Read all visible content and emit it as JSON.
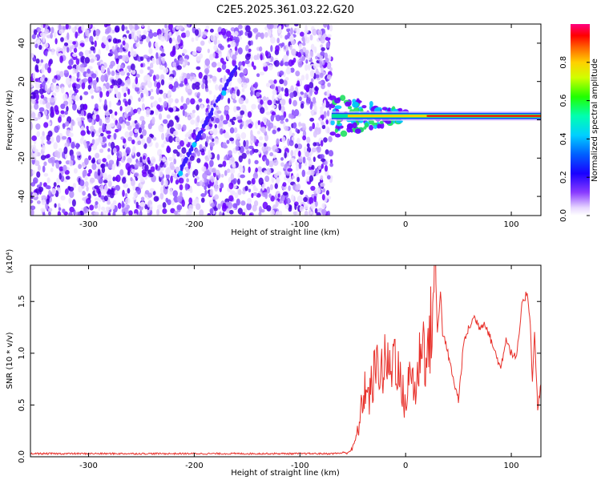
{
  "title": "C2E5.2025.361.03.22.G20",
  "colors": {
    "axis": "#000000",
    "snr_line": "#e8302a",
    "spec_bg_purple": "#6a00ff",
    "ridge_red": "#e00000"
  },
  "chart_data": [
    {
      "type": "heatmap",
      "title": "C2E5.2025.361.03.22.G20",
      "xlabel": "Height of straight line (km)",
      "ylabel": "Frequency (Hz)",
      "xlim": [
        -355,
        128
      ],
      "ylim": [
        -50,
        50
      ],
      "xticks": [
        -300,
        -200,
        -100,
        0,
        100
      ],
      "yticks": [
        -40,
        -20,
        0,
        20,
        40
      ],
      "colorbar": {
        "label": "Normalized spectral amplitude",
        "range": [
          0.0,
          1.0
        ],
        "ticks": [
          "0.0",
          "0.2",
          "0.4",
          "0.6",
          "0.8"
        ]
      },
      "features": {
        "noise_region_x": [
          -355,
          -70
        ],
        "ridge_frequency_hz": 2,
        "ridge_x": [
          -70,
          128
        ],
        "diagonal_streak": {
          "x": [
            -215,
            -160
          ],
          "y": [
            -28,
            28
          ]
        }
      }
    },
    {
      "type": "line",
      "xlabel": "Height of straight line (km)",
      "ylabel": "SNR (10 * v/v)",
      "y_multiplier": "(x10⁴)",
      "xlim": [
        -355,
        128
      ],
      "ylim": [
        0,
        1.85
      ],
      "xticks": [
        -300,
        -200,
        -100,
        0,
        100
      ],
      "yticks": [
        0.0,
        0.5,
        1.0,
        1.5
      ],
      "ytick_labels": [
        "0.0",
        "0.5",
        "1.0",
        "1.5"
      ],
      "series": [
        {
          "x": [
            -355,
            -300,
            -250,
            -200,
            -150,
            -100,
            -70,
            -55,
            -50,
            -45,
            -42,
            -38,
            -35,
            -30,
            -25,
            -22,
            -18,
            -15,
            -10,
            -5,
            0,
            5,
            10,
            15,
            20,
            25,
            28,
            30,
            33,
            35,
            40,
            45,
            50,
            55,
            60,
            65,
            70,
            75,
            80,
            85,
            90,
            95,
            100,
            105,
            110,
            115,
            118,
            120,
            122,
            125,
            128
          ],
          "y": [
            0.03,
            0.03,
            0.03,
            0.03,
            0.03,
            0.03,
            0.03,
            0.04,
            0.08,
            0.25,
            0.45,
            0.7,
            0.55,
            0.78,
            0.92,
            0.8,
            0.95,
            0.8,
            1.05,
            0.7,
            0.5,
            0.85,
            0.6,
            1.2,
            0.9,
            1.35,
            1.85,
            1.2,
            1.6,
            1.2,
            1.0,
            0.75,
            0.55,
            1.1,
            1.25,
            1.35,
            1.25,
            1.3,
            1.15,
            1.0,
            0.85,
            1.15,
            1.0,
            0.95,
            1.45,
            1.6,
            1.3,
            0.7,
            1.2,
            0.45,
            0.7
          ]
        }
      ]
    }
  ]
}
